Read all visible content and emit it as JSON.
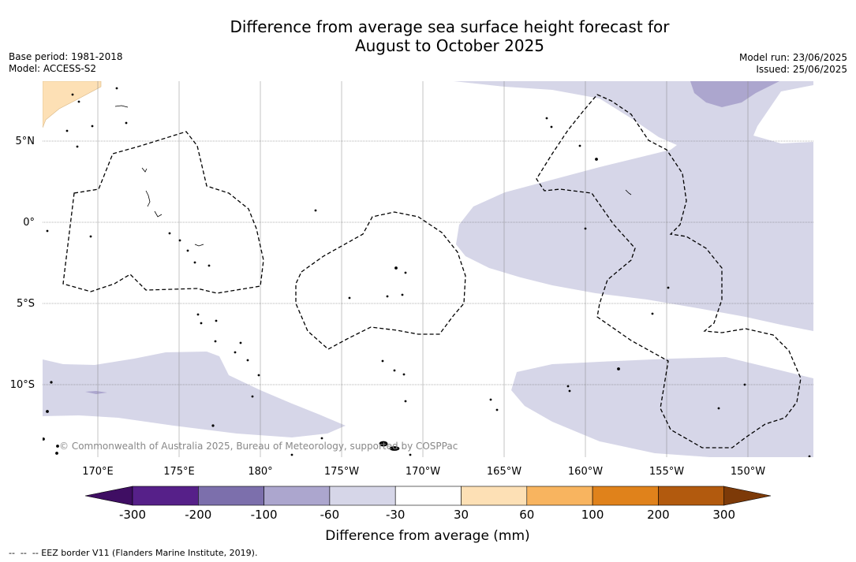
{
  "title_line1": "Difference from average sea surface height forecast for",
  "title_line2": "August to October 2025",
  "base_period": "Base period: 1981-2018",
  "model": "Model: ACCESS-S2",
  "model_run": "Model run: 23/06/2025",
  "issued": "Issued: 25/06/2025",
  "lat_labels": [
    "5°N",
    "0°",
    "5°S",
    "10°S"
  ],
  "lon_labels": [
    "170°E",
    "175°E",
    "180°",
    "175°W",
    "170°W",
    "165°W",
    "160°W",
    "155°W",
    "150°W"
  ],
  "copyright": "© Commonwealth of Australia 2025, Bureau of Meteorology, supported by COSPPac",
  "colorbar": {
    "ticks": [
      "-300",
      "-200",
      "-100",
      "-60",
      "-30",
      "30",
      "60",
      "100",
      "200",
      "300"
    ],
    "colors": [
      "#3f0e63",
      "#562089",
      "#7c6fac",
      "#aca6ce",
      "#d6d6e8",
      "#ffffff",
      "#fde0b5",
      "#f8b45f",
      "#e0821b",
      "#b25a0e",
      "#7d3a08"
    ],
    "label": "Difference from average (mm)"
  },
  "legend_note": "--  --  -- EEZ border V11 (Flanders Marine Institute, 2019)."
}
